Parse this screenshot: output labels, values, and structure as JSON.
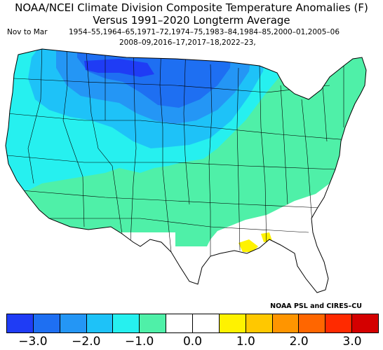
{
  "title_line1": "NOAA/NCEI Climate Division Composite Temperature Anomalies (F)",
  "title_line2": "Versus 1991–2020 Longterm Average",
  "period": "Nov to Mar",
  "years_line1": "1954–55,1964–65,1971–72,1974–75,1983–84,1984–85,2000–01,2005–06",
  "years_line2": "2008–09,2016–17,2017–18,2022–23,",
  "credit": "NOAA PSL and CIRES–CU",
  "legend": {
    "colors": [
      "#1f3cf5",
      "#1e6ff2",
      "#2496f5",
      "#1ec2f8",
      "#26f0ef",
      "#4ff0a8",
      "#ffffff",
      "#ffffff",
      "#fff200",
      "#ffc800",
      "#ff9500",
      "#ff6600",
      "#ff2a00",
      "#d40000"
    ],
    "tick_labels": [
      "−3.0",
      "−2.0",
      "−1.0",
      "0.0",
      "1.0",
      "2.0",
      "3.0"
    ]
  },
  "regions": {
    "land": "#ffffff",
    "anom_m05_m10": "#4ff0a8",
    "anom_m10_m15": "#26f0ef",
    "anom_m15_m20": "#1ec2f8",
    "anom_m20_m25": "#2496f5",
    "anom_m25_m30": "#1e6ff2",
    "anom_m30": "#1f3cf5",
    "anom_p05_p10": "#fff200"
  }
}
